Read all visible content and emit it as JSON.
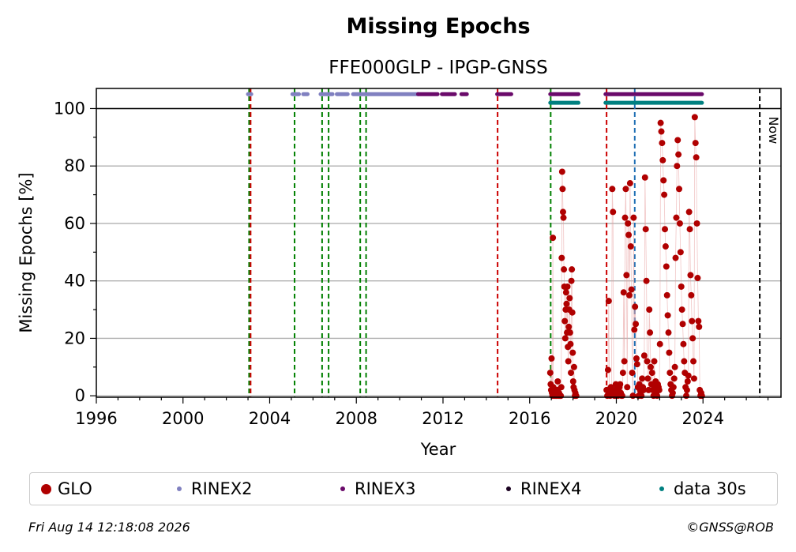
{
  "chart_data": {
    "type": "scatter",
    "title": "Missing Epochs",
    "subtitle": "FFE000GLP - IPGP-GNSS",
    "xlabel": "Year",
    "ylabel": "Missing Epochs [%]",
    "xlim": [
      1996,
      2027.6
    ],
    "ylim": [
      -0.5,
      107
    ],
    "x_ticks": [
      "1996",
      "2000",
      "2004",
      "2008",
      "2012",
      "2016",
      "2020",
      "2024"
    ],
    "y_ticks": [
      "0",
      "20",
      "40",
      "60",
      "80",
      "100"
    ],
    "grid": "horizontal",
    "reference_line_y": 100,
    "now_label": "Now",
    "now_x": 2026.62,
    "colors": {
      "glo": "#b00000",
      "rinex2": "#8080c0",
      "rinex3": "#6a0a6a",
      "rinex4": "#1a0020",
      "data30s": "#008080",
      "event_green": "#008000",
      "event_red": "#cc0000",
      "event_blue": "#1f6fb4",
      "now_line": "#000000"
    },
    "event_lines": [
      {
        "x": 2003.05,
        "color": "green"
      },
      {
        "x": 2003.12,
        "color": "red"
      },
      {
        "x": 2005.15,
        "color": "green"
      },
      {
        "x": 2006.42,
        "color": "green"
      },
      {
        "x": 2006.72,
        "color": "green"
      },
      {
        "x": 2008.18,
        "color": "green"
      },
      {
        "x": 2008.45,
        "color": "green"
      },
      {
        "x": 2014.52,
        "color": "red"
      },
      {
        "x": 2016.97,
        "color": "green"
      },
      {
        "x": 2019.55,
        "color": "red"
      },
      {
        "x": 2020.85,
        "color": "blue"
      }
    ],
    "series": [
      {
        "name": "GLO",
        "segments": [
          {
            "x_start": 2016.95,
            "x_end": 2018.15,
            "y": [
              8,
              4,
              2,
              13,
              1,
              0,
              55,
              3,
              0,
              1,
              0,
              2,
              0,
              1,
              0,
              0,
              2,
              5,
              0,
              0,
              1,
              0,
              0,
              0,
              0,
              3,
              48,
              78,
              72,
              64,
              62,
              44,
              38,
              26,
              20,
              30,
              36,
              32,
              22,
              38,
              17,
              12,
              24,
              30,
              34,
              22,
              18,
              8,
              40,
              44,
              29,
              15,
              5,
              3,
              10,
              2,
              0,
              1,
              0,
              0
            ]
          },
          {
            "x_start": 2019.55,
            "x_end": 2023.95,
            "y": [
              2,
              0,
              9,
              33,
              1,
              0,
              3,
              2,
              72,
              64,
              1,
              0,
              2,
              4,
              0,
              1,
              0,
              2,
              3,
              4,
              1,
              0,
              0,
              8,
              36,
              12,
              62,
              72,
              42,
              3,
              60,
              56,
              35,
              74,
              52,
              37,
              8,
              0,
              62,
              23,
              31,
              25,
              13,
              11,
              3,
              0,
              4,
              2,
              1,
              0,
              6,
              3,
              2,
              14,
              76,
              58,
              40,
              12,
              6,
              2,
              30,
              22,
              10,
              4,
              8,
              2,
              0,
              12,
              3,
              5,
              1,
              0,
              4,
              3,
              2,
              18,
              95,
              92,
              88,
              82,
              75,
              70,
              58,
              52,
              45,
              35,
              28,
              22,
              15,
              8,
              4,
              2,
              0,
              1,
              3,
              6,
              10,
              48,
              62,
              80,
              89,
              84,
              72,
              60,
              50,
              38,
              30,
              25,
              18,
              12,
              8,
              3,
              0,
              2,
              5,
              7,
              64,
              58,
              42,
              35,
              26,
              20,
              12,
              6,
              97,
              88,
              83,
              60,
              41,
              26,
              24,
              2,
              0,
              1,
              0
            ]
          }
        ]
      },
      {
        "name": "RINEX2",
        "y": 105,
        "ranges": [
          [
            2003.0,
            2003.15
          ],
          [
            2005.05,
            2005.35
          ],
          [
            2005.55,
            2005.75
          ],
          [
            2006.35,
            2006.9
          ],
          [
            2007.1,
            2007.6
          ],
          [
            2007.85,
            2010.85
          ]
        ]
      },
      {
        "name": "RINEX3",
        "y": 105,
        "ranges": [
          [
            2010.85,
            2011.75
          ],
          [
            2011.95,
            2012.55
          ],
          [
            2012.85,
            2013.1
          ],
          [
            2014.5,
            2015.15
          ],
          [
            2016.95,
            2018.25
          ],
          [
            2019.5,
            2023.95
          ]
        ]
      },
      {
        "name": "RINEX4",
        "y": 105,
        "ranges": []
      },
      {
        "name": "data 30s",
        "y": 102,
        "ranges": [
          [
            2016.95,
            2018.25
          ],
          [
            2019.5,
            2023.95
          ]
        ]
      }
    ],
    "legend": {
      "placement": "bottom",
      "entries": [
        {
          "label": "GLO",
          "color": "#b00000",
          "size": "large"
        },
        {
          "label": "RINEX2",
          "color": "#8080c0",
          "size": "small"
        },
        {
          "label": "RINEX3",
          "color": "#6a0a6a",
          "size": "small"
        },
        {
          "label": "RINEX4",
          "color": "#1a0020",
          "size": "small"
        },
        {
          "label": "data 30s",
          "color": "#008080",
          "size": "small"
        }
      ]
    }
  },
  "footer": {
    "timestamp": "Fri Aug 14 12:18:08 2026",
    "credit": "©GNSS@ROB"
  }
}
